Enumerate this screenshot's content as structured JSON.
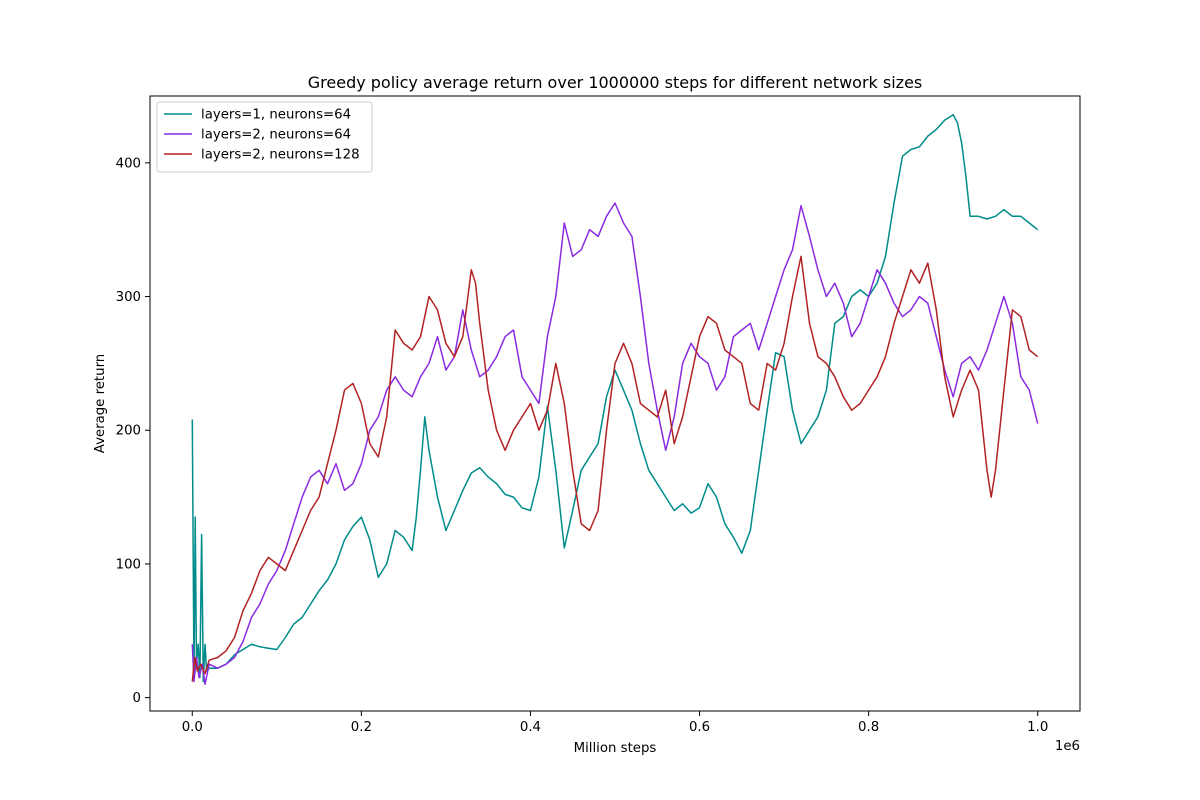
{
  "chart_data": {
    "type": "line",
    "title": "Greedy policy average return over 1000000 steps for different network sizes",
    "xlabel": "Million steps",
    "ylabel": "Average return",
    "x_offset_label": "1e6",
    "xlim": [
      -50000,
      1050000
    ],
    "ylim": [
      -10,
      450
    ],
    "x_ticks": [
      0,
      200000,
      400000,
      600000,
      800000,
      1000000
    ],
    "x_tick_labels": [
      "0.0",
      "0.2",
      "0.4",
      "0.6",
      "0.8",
      "1.0"
    ],
    "y_ticks": [
      0,
      100,
      200,
      300,
      400
    ],
    "y_tick_labels": [
      "0",
      "100",
      "200",
      "300",
      "400"
    ],
    "grid": false,
    "legend_position": "top-left",
    "series": [
      {
        "name": "layers=1, neurons=64",
        "color": "#008b8b",
        "x": [
          0,
          2000,
          3500,
          5000,
          7000,
          9000,
          11000,
          13000,
          15000,
          17000,
          20000,
          30000,
          40000,
          50000,
          60000,
          70000,
          80000,
          90000,
          100000,
          110000,
          120000,
          130000,
          140000,
          150000,
          160000,
          170000,
          180000,
          190000,
          200000,
          210000,
          220000,
          230000,
          240000,
          250000,
          260000,
          265000,
          270000,
          275000,
          280000,
          290000,
          300000,
          310000,
          320000,
          330000,
          340000,
          350000,
          360000,
          370000,
          380000,
          390000,
          400000,
          410000,
          420000,
          430000,
          440000,
          450000,
          460000,
          470000,
          480000,
          490000,
          500000,
          510000,
          520000,
          530000,
          540000,
          550000,
          560000,
          570000,
          580000,
          590000,
          600000,
          610000,
          620000,
          630000,
          640000,
          650000,
          660000,
          670000,
          680000,
          690000,
          700000,
          710000,
          720000,
          730000,
          740000,
          750000,
          760000,
          770000,
          780000,
          790000,
          800000,
          810000,
          820000,
          830000,
          840000,
          850000,
          860000,
          870000,
          880000,
          890000,
          900000,
          905000,
          910000,
          915000,
          920000,
          930000,
          940000,
          950000,
          960000,
          970000,
          980000,
          990000,
          1000000
        ],
        "y": [
          208,
          15,
          135,
          25,
          40,
          15,
          122,
          12,
          40,
          20,
          22,
          22,
          25,
          32,
          36,
          40,
          38,
          37,
          36,
          45,
          55,
          60,
          70,
          80,
          88,
          100,
          118,
          128,
          135,
          118,
          90,
          100,
          125,
          120,
          110,
          135,
          170,
          210,
          185,
          150,
          125,
          140,
          155,
          168,
          172,
          165,
          160,
          152,
          150,
          142,
          140,
          165,
          218,
          170,
          112,
          140,
          170,
          180,
          190,
          225,
          245,
          230,
          215,
          190,
          170,
          160,
          150,
          140,
          145,
          138,
          142,
          160,
          150,
          130,
          120,
          108,
          125,
          170,
          215,
          258,
          255,
          215,
          190,
          200,
          210,
          230,
          280,
          285,
          300,
          305,
          300,
          310,
          330,
          370,
          405,
          410,
          412,
          420,
          425,
          432,
          436,
          430,
          415,
          390,
          360,
          360,
          358,
          360,
          365,
          360,
          360,
          355,
          350
        ]
      },
      {
        "name": "layers=2, neurons=64",
        "color": "#8a2be2",
        "x": [
          0,
          2000,
          5000,
          8000,
          12000,
          15000,
          20000,
          30000,
          40000,
          50000,
          60000,
          70000,
          80000,
          90000,
          100000,
          110000,
          120000,
          130000,
          140000,
          150000,
          160000,
          170000,
          180000,
          190000,
          200000,
          210000,
          220000,
          230000,
          240000,
          250000,
          260000,
          270000,
          280000,
          290000,
          300000,
          310000,
          320000,
          330000,
          340000,
          350000,
          360000,
          370000,
          380000,
          390000,
          400000,
          410000,
          420000,
          430000,
          440000,
          450000,
          460000,
          470000,
          480000,
          490000,
          500000,
          510000,
          520000,
          530000,
          540000,
          550000,
          560000,
          570000,
          580000,
          590000,
          600000,
          610000,
          620000,
          630000,
          640000,
          650000,
          660000,
          670000,
          680000,
          690000,
          700000,
          710000,
          720000,
          730000,
          740000,
          750000,
          760000,
          770000,
          780000,
          790000,
          800000,
          810000,
          820000,
          830000,
          840000,
          850000,
          860000,
          870000,
          880000,
          890000,
          900000,
          910000,
          920000,
          930000,
          940000,
          950000,
          960000,
          970000,
          980000,
          990000,
          1000000
        ],
        "y": [
          40,
          12,
          30,
          15,
          25,
          10,
          25,
          22,
          25,
          30,
          42,
          60,
          70,
          85,
          95,
          110,
          130,
          150,
          165,
          170,
          160,
          175,
          155,
          160,
          175,
          200,
          210,
          230,
          240,
          230,
          225,
          240,
          250,
          270,
          245,
          255,
          290,
          260,
          240,
          245,
          255,
          270,
          275,
          240,
          230,
          220,
          270,
          300,
          355,
          330,
          335,
          350,
          345,
          360,
          370,
          355,
          345,
          300,
          250,
          215,
          185,
          210,
          250,
          265,
          255,
          250,
          230,
          240,
          270,
          275,
          280,
          260,
          280,
          300,
          320,
          335,
          368,
          345,
          320,
          300,
          310,
          295,
          270,
          280,
          300,
          320,
          310,
          295,
          285,
          290,
          300,
          295,
          270,
          245,
          225,
          250,
          255,
          245,
          260,
          280,
          300,
          280,
          240,
          230,
          205
        ]
      },
      {
        "name": "layers=2, neurons=128",
        "color": "#b22222",
        "x": [
          0,
          3000,
          6000,
          10000,
          15000,
          20000,
          30000,
          40000,
          50000,
          60000,
          70000,
          80000,
          90000,
          100000,
          110000,
          120000,
          130000,
          140000,
          150000,
          160000,
          170000,
          180000,
          190000,
          200000,
          210000,
          220000,
          230000,
          240000,
          250000,
          260000,
          270000,
          280000,
          290000,
          300000,
          310000,
          320000,
          330000,
          335000,
          340000,
          350000,
          360000,
          370000,
          380000,
          390000,
          400000,
          410000,
          420000,
          430000,
          440000,
          450000,
          460000,
          470000,
          480000,
          490000,
          500000,
          510000,
          520000,
          530000,
          540000,
          550000,
          560000,
          570000,
          580000,
          590000,
          600000,
          610000,
          620000,
          630000,
          640000,
          650000,
          660000,
          670000,
          680000,
          690000,
          700000,
          710000,
          720000,
          730000,
          740000,
          750000,
          760000,
          770000,
          780000,
          790000,
          800000,
          810000,
          820000,
          830000,
          840000,
          850000,
          860000,
          870000,
          880000,
          890000,
          900000,
          910000,
          920000,
          930000,
          940000,
          945000,
          950000,
          960000,
          970000,
          980000,
          990000,
          1000000
        ],
        "y": [
          12,
          30,
          20,
          25,
          18,
          28,
          30,
          35,
          45,
          65,
          78,
          95,
          105,
          100,
          95,
          110,
          125,
          140,
          150,
          175,
          200,
          230,
          235,
          220,
          190,
          180,
          210,
          275,
          265,
          260,
          270,
          300,
          290,
          265,
          255,
          270,
          320,
          310,
          280,
          230,
          200,
          185,
          200,
          210,
          220,
          200,
          215,
          250,
          220,
          170,
          130,
          125,
          140,
          200,
          250,
          265,
          250,
          220,
          215,
          210,
          230,
          190,
          210,
          240,
          270,
          285,
          280,
          260,
          255,
          250,
          220,
          215,
          250,
          245,
          265,
          300,
          330,
          280,
          255,
          250,
          240,
          225,
          215,
          220,
          230,
          240,
          255,
          280,
          300,
          320,
          310,
          325,
          290,
          240,
          210,
          230,
          245,
          230,
          170,
          150,
          170,
          230,
          290,
          285,
          260,
          255
        ]
      }
    ]
  }
}
